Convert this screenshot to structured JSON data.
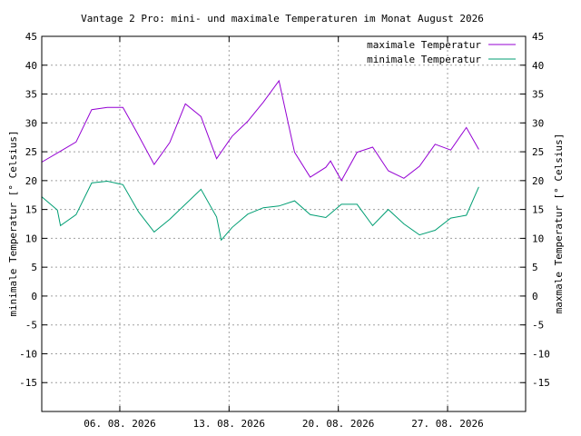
{
  "chart_data": {
    "type": "line",
    "title": "Vantage 2 Pro: mini- und maximale Temperaturen im Monat August 2026",
    "ylabel_left": "minimale Temperatur [° Celsius]",
    "ylabel_right": "maxmale Temperatur [° Celsius]",
    "ylim": [
      -20,
      45
    ],
    "y_ticks": [
      -15,
      -10,
      -5,
      0,
      5,
      10,
      15,
      20,
      25,
      30,
      35,
      40,
      45
    ],
    "xlim": [
      1.0,
      32.0
    ],
    "x_ticks": [
      {
        "x": 6,
        "label": "06. 08. 2026"
      },
      {
        "x": 13,
        "label": "13. 08. 2026"
      },
      {
        "x": 20,
        "label": "20. 08. 2026"
      },
      {
        "x": 27,
        "label": "27. 08. 2026"
      }
    ],
    "grid": true,
    "legend_position": "top-right",
    "series": [
      {
        "name": "maximale Temperatur",
        "color": "#9400d3",
        "points": [
          [
            1.0,
            23.2
          ],
          [
            2.2,
            25.1
          ],
          [
            3.2,
            26.7
          ],
          [
            4.2,
            32.3
          ],
          [
            5.2,
            32.7
          ],
          [
            6.2,
            32.7
          ],
          [
            7.0,
            28.8
          ],
          [
            8.2,
            22.8
          ],
          [
            9.2,
            26.6
          ],
          [
            10.2,
            33.3
          ],
          [
            11.2,
            31.1
          ],
          [
            12.2,
            23.8
          ],
          [
            13.2,
            27.7
          ],
          [
            14.2,
            30.3
          ],
          [
            15.2,
            33.6
          ],
          [
            16.2,
            37.3
          ],
          [
            17.2,
            24.9
          ],
          [
            18.2,
            20.6
          ],
          [
            19.2,
            22.3
          ],
          [
            19.5,
            23.4
          ],
          [
            20.2,
            20.0
          ],
          [
            21.2,
            24.9
          ],
          [
            22.2,
            25.8
          ],
          [
            23.2,
            21.7
          ],
          [
            24.2,
            20.4
          ],
          [
            25.2,
            22.5
          ],
          [
            26.2,
            26.3
          ],
          [
            27.2,
            25.3
          ],
          [
            28.2,
            29.2
          ],
          [
            29.0,
            25.4
          ]
        ]
      },
      {
        "name": "minimale Temperatur",
        "color": "#009e73",
        "points": [
          [
            1.0,
            17.2
          ],
          [
            2.0,
            14.9
          ],
          [
            2.2,
            12.2
          ],
          [
            3.2,
            14.1
          ],
          [
            4.2,
            19.6
          ],
          [
            5.2,
            19.9
          ],
          [
            6.2,
            19.3
          ],
          [
            7.2,
            14.6
          ],
          [
            8.2,
            11.1
          ],
          [
            9.2,
            13.3
          ],
          [
            10.2,
            15.9
          ],
          [
            11.2,
            18.5
          ],
          [
            12.2,
            13.7
          ],
          [
            12.5,
            9.7
          ],
          [
            13.2,
            11.9
          ],
          [
            14.2,
            14.2
          ],
          [
            15.2,
            15.3
          ],
          [
            16.2,
            15.6
          ],
          [
            17.2,
            16.5
          ],
          [
            18.2,
            14.1
          ],
          [
            19.2,
            13.6
          ],
          [
            20.2,
            15.9
          ],
          [
            21.2,
            15.9
          ],
          [
            22.2,
            12.2
          ],
          [
            23.2,
            15.0
          ],
          [
            24.2,
            12.5
          ],
          [
            25.2,
            10.6
          ],
          [
            26.2,
            11.4
          ],
          [
            27.2,
            13.5
          ],
          [
            28.2,
            14.0
          ],
          [
            29.0,
            18.9
          ]
        ]
      }
    ]
  }
}
